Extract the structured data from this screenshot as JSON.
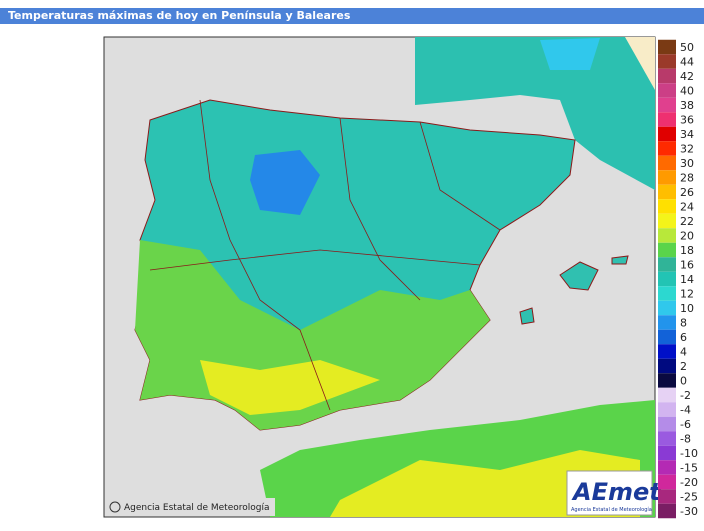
{
  "header": {
    "title": "Temperaturas máximas de hoy en Península y Baleares"
  },
  "legend": {
    "upper": [
      {
        "label": 50,
        "color": "#7a3a14"
      },
      {
        "label": 44,
        "color": "#9a3a2a"
      },
      {
        "label": 42,
        "color": "#b83a6a"
      },
      {
        "label": 40,
        "color": "#cc3f86"
      },
      {
        "label": 38,
        "color": "#e0408e"
      },
      {
        "label": 36,
        "color": "#ee3070"
      },
      {
        "label": 34,
        "color": "#e00000"
      },
      {
        "label": 32,
        "color": "#ff2a00"
      },
      {
        "label": 30,
        "color": "#ff6a00"
      },
      {
        "label": 28,
        "color": "#ff9a00"
      },
      {
        "label": 26,
        "color": "#ffbe00"
      },
      {
        "label": 24,
        "color": "#ffe000"
      },
      {
        "label": 22,
        "color": "#f4f41a"
      },
      {
        "label": 20,
        "color": "#b8e83a"
      },
      {
        "label": 18,
        "color": "#5ad44a"
      },
      {
        "label": 16,
        "color": "#30b498"
      },
      {
        "label": 14,
        "color": "#22c4b4"
      },
      {
        "label": 12,
        "color": "#2cd8d0"
      },
      {
        "label": 10,
        "color": "#30c8ec"
      },
      {
        "label": 8,
        "color": "#2294ec"
      },
      {
        "label": 6,
        "color": "#1262d8"
      },
      {
        "label": 4,
        "color": "#0010c8"
      },
      {
        "label": 2,
        "color": "#000a80"
      },
      {
        "label": 0,
        "color": "#0a0a40"
      }
    ],
    "lower": [
      {
        "label": -2,
        "color": "#e6d2f4"
      },
      {
        "label": -4,
        "color": "#d2b4f0"
      },
      {
        "label": -6,
        "color": "#b48ce8"
      },
      {
        "label": -8,
        "color": "#9a5ae0"
      },
      {
        "label": -10,
        "color": "#8a3ad4"
      },
      {
        "label": -15,
        "color": "#b42ab4"
      },
      {
        "label": -20,
        "color": "#d0289c"
      },
      {
        "label": -25,
        "color": "#a8287e"
      },
      {
        "label": -30,
        "color": "#7a1e64"
      }
    ]
  },
  "credit": "Agencia Estatal de Meteorología",
  "logo": {
    "name": "AEmet",
    "subtitle": "Agencia Estatal de Meteorología"
  }
}
